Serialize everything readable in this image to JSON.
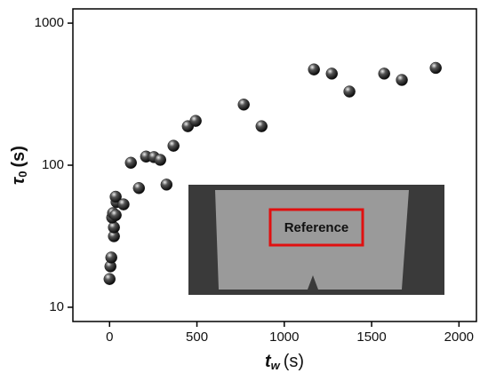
{
  "chart_data": {
    "type": "scatter",
    "ylabel": {
      "symbol": "τ",
      "sub": "0",
      "unit": "(s)"
    },
    "xlabel": {
      "symbol": "t",
      "sub": "w",
      "unit": "(s)"
    },
    "annotations": [
      "Reference"
    ],
    "series": [
      {
        "color": "#222222",
        "x": [
          0,
          5,
          10,
          25,
          25,
          15,
          20,
          35,
          40,
          35,
          80,
          122,
          168,
          209,
          254,
          290,
          326,
          366,
          448,
          493,
          768,
          870,
          1170,
          1272,
          1373,
          1572,
          1673,
          1867
        ],
        "values": [
          15.8,
          19.4,
          22.4,
          31.6,
          36.5,
          42.8,
          46,
          44.5,
          55,
          60,
          53,
          104,
          69,
          115,
          114,
          109,
          73,
          137,
          188,
          205,
          267,
          188,
          472,
          441,
          330,
          441,
          398,
          484
        ]
      }
    ],
    "xlim": [
      -210,
      2100
    ],
    "ylim": [
      7.94,
      1260
    ],
    "log_y": true,
    "xticks": [
      0,
      500,
      1000,
      1500,
      2000
    ],
    "yticks": [
      10,
      100,
      1000
    ]
  }
}
